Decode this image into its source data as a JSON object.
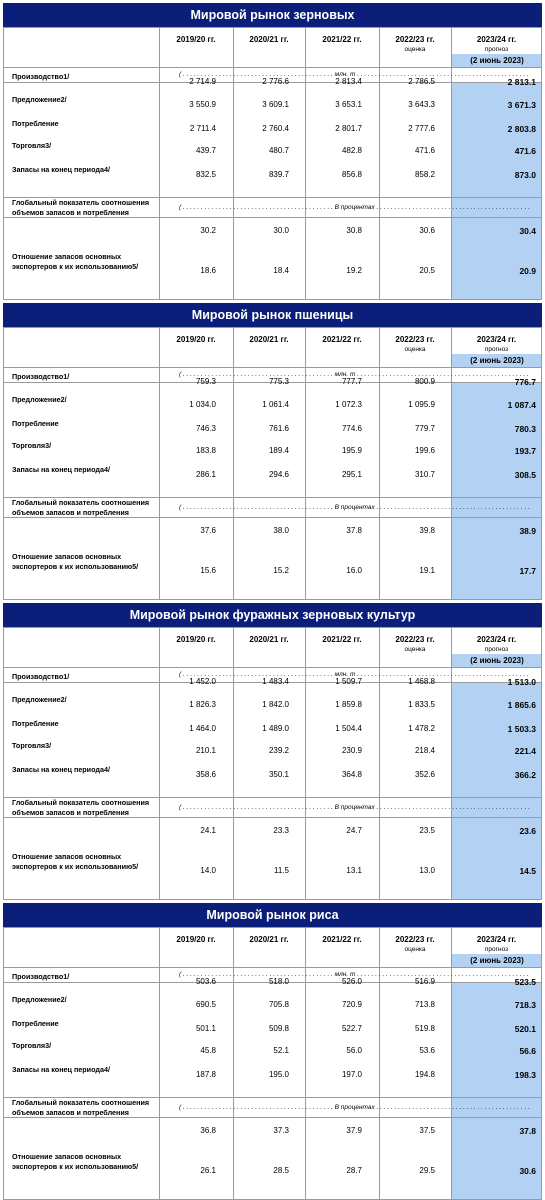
{
  "columns": [
    "2019/20 гг.",
    "2020/21 гг.",
    "2021/22 гг.",
    "2022/23 гг.",
    "2023/24 гг."
  ],
  "col_notes": [
    "",
    "",
    "",
    "оценка",
    "прогноз"
  ],
  "forecast_date": "(2 июнь 2023)",
  "unit_mln": "( . . . . . . . . . . . . . . . . . . . . . . . . . . . . . . . . . . . . . . . . . . млн. т . . . . . . . . . . . . . . . . . . . . . . . . . . . . . . . . . . . . . . . . . . . . . . . . . . . . . . . . . . . . . . . )",
  "unit_pct": "( . . . . . . . . . . . . . . . . . . . . . . . . . . . . . . . . . . . . . . . . . . В процентах . . . . . . . . . . . . . . . . . . . . . . . . . . . . . . . . . . . . . . . . . . . . . . . . . . . . . . . )",
  "row_labels": {
    "production": "Производство1/",
    "supply": "Предложение2/",
    "consumption": "Потребление",
    "trade": "Торговля3/",
    "stocks": "Запасы на конец периода4/",
    "ratio_global": "Глобальный показатель соотношения объемов запасов и потребления",
    "ratio_exporters": "Отношение запасов основных экспортеров к их использованию5/"
  },
  "tables": [
    {
      "title": "Мировой рынок зерновых",
      "rows": {
        "production": [
          "2 714.9",
          "2 776.6",
          "2 813.4",
          "2 786.5",
          "2 813.1"
        ],
        "supply": [
          "3 550.9",
          "3 609.1",
          "3 653.1",
          "3 643.3",
          "3 671.3"
        ],
        "consumption": [
          "2 711.4",
          "2 760.4",
          "2 801.7",
          "2 777.6",
          "2 803.8"
        ],
        "trade": [
          "439.7",
          "480.7",
          "482.8",
          "471.6",
          "471.6"
        ],
        "stocks": [
          "832.5",
          "839.7",
          "856.8",
          "858.2",
          "873.0"
        ],
        "ratio_global": [
          "30.2",
          "30.0",
          "30.8",
          "30.6",
          "30.4"
        ],
        "ratio_exporters": [
          "18.6",
          "18.4",
          "19.2",
          "20.5",
          "20.9"
        ]
      }
    },
    {
      "title": "Мировой рынок пшеницы",
      "rows": {
        "production": [
          "759.3",
          "775.3",
          "777.7",
          "800.9",
          "776.7"
        ],
        "supply": [
          "1 034.0",
          "1 061.4",
          "1 072.3",
          "1 095.9",
          "1 087.4"
        ],
        "consumption": [
          "746.3",
          "761.6",
          "774.6",
          "779.7",
          "780.3"
        ],
        "trade": [
          "183.8",
          "189.4",
          "195.9",
          "199.6",
          "193.7"
        ],
        "stocks": [
          "286.1",
          "294.6",
          "295.1",
          "310.7",
          "308.5"
        ],
        "ratio_global": [
          "37.6",
          "38.0",
          "37.8",
          "39.8",
          "38.9"
        ],
        "ratio_exporters": [
          "15.6",
          "15.2",
          "16.0",
          "19.1",
          "17.7"
        ]
      }
    },
    {
      "title": "Мировой рынок фуражных зерновых культур",
      "rows": {
        "production": [
          "1 452.0",
          "1 483.4",
          "1 509.7",
          "1 468.8",
          "1 513.0"
        ],
        "supply": [
          "1 826.3",
          "1 842.0",
          "1 859.8",
          "1 833.5",
          "1 865.6"
        ],
        "consumption": [
          "1 464.0",
          "1 489.0",
          "1 504.4",
          "1 478.2",
          "1 503.3"
        ],
        "trade": [
          "210.1",
          "239.2",
          "230.9",
          "218.4",
          "221.4"
        ],
        "stocks": [
          "358.6",
          "350.1",
          "364.8",
          "352.6",
          "366.2"
        ],
        "ratio_global": [
          "24.1",
          "23.3",
          "24.7",
          "23.5",
          "23.6"
        ],
        "ratio_exporters": [
          "14.0",
          "11.5",
          "13.1",
          "13.0",
          "14.5"
        ]
      }
    },
    {
      "title": "Мировой рынок риса",
      "rows": {
        "production": [
          "503.6",
          "518.0",
          "526.0",
          "516.9",
          "523.5"
        ],
        "supply": [
          "690.5",
          "705.8",
          "720.9",
          "713.8",
          "718.3"
        ],
        "consumption": [
          "501.1",
          "509.8",
          "522.7",
          "519.8",
          "520.1"
        ],
        "trade": [
          "45.8",
          "52.1",
          "56.0",
          "53.6",
          "56.6"
        ],
        "stocks": [
          "187.8",
          "195.0",
          "197.0",
          "194.8",
          "198.3"
        ],
        "ratio_global": [
          "36.8",
          "37.3",
          "37.9",
          "37.5",
          "37.8"
        ],
        "ratio_exporters": [
          "26.1",
          "28.5",
          "28.7",
          "29.5",
          "30.6"
        ]
      }
    }
  ]
}
